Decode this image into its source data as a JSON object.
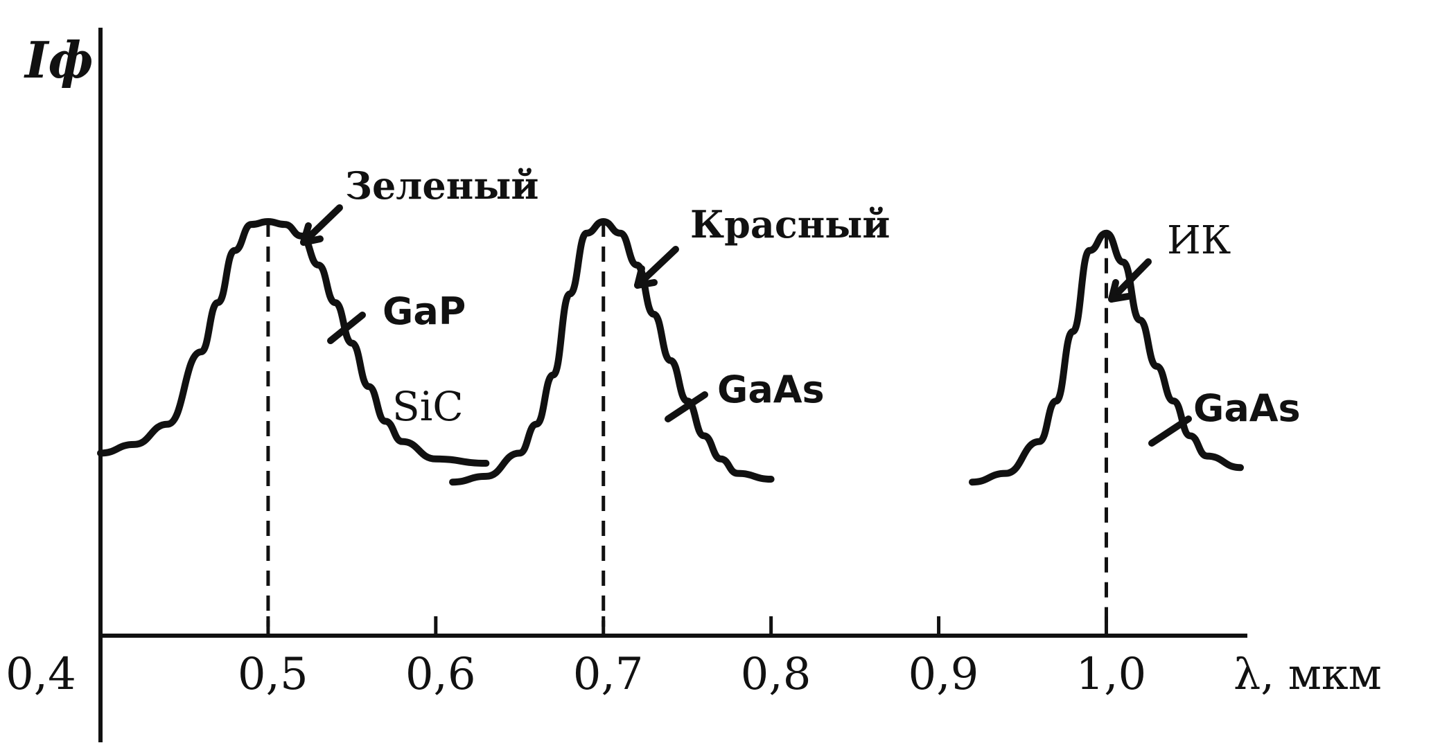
{
  "chart_data": {
    "type": "line",
    "title": "",
    "xlabel": "λ, мкм",
    "ylabel": "Iф",
    "xlim": [
      0.4,
      1.08
    ],
    "ylim": [
      0,
      1
    ],
    "grid": false,
    "x_tick_labels": [
      "0,4",
      "0,5",
      "0,6",
      "0,7",
      "0,8",
      "0,9",
      "1,0"
    ],
    "x_ticks": [
      0.4,
      0.5,
      0.6,
      0.7,
      0.8,
      0.9,
      1.0
    ],
    "series": [
      {
        "peak": 0.5,
        "color_name": "Зеленый",
        "materials": [
          "GaP",
          "SiC"
        ],
        "x": [
          0.4,
          0.42,
          0.44,
          0.46,
          0.47,
          0.48,
          0.49,
          0.5,
          0.51,
          0.52,
          0.53,
          0.54,
          0.55,
          0.56,
          0.57,
          0.58,
          0.6,
          0.63
        ],
        "y": [
          0.2,
          0.23,
          0.3,
          0.55,
          0.72,
          0.9,
          0.99,
          1.0,
          0.99,
          0.95,
          0.85,
          0.72,
          0.58,
          0.43,
          0.31,
          0.24,
          0.18,
          0.165
        ]
      },
      {
        "peak": 0.7,
        "color_name": "Красный",
        "materials": [
          "GaAs"
        ],
        "x": [
          0.61,
          0.63,
          0.65,
          0.66,
          0.67,
          0.68,
          0.69,
          0.7,
          0.71,
          0.72,
          0.73,
          0.74,
          0.75,
          0.76,
          0.77,
          0.78,
          0.8
        ],
        "y": [
          0.1,
          0.12,
          0.2,
          0.3,
          0.47,
          0.75,
          0.96,
          1.0,
          0.96,
          0.85,
          0.68,
          0.52,
          0.38,
          0.26,
          0.18,
          0.13,
          0.11
        ]
      },
      {
        "peak": 1.0,
        "color_name": "ИК",
        "materials": [
          "GaAs"
        ],
        "x": [
          0.92,
          0.94,
          0.96,
          0.97,
          0.98,
          0.99,
          1.0,
          1.01,
          1.02,
          1.03,
          1.04,
          1.05,
          1.06,
          1.08
        ],
        "y": [
          0.1,
          0.13,
          0.24,
          0.38,
          0.62,
          0.9,
          0.96,
          0.86,
          0.66,
          0.5,
          0.38,
          0.26,
          0.19,
          0.15
        ]
      }
    ],
    "annotations": {
      "green": "Зеленый",
      "red": "Красный",
      "ir": "ИК",
      "gap": "GaP",
      "sic": "SiC",
      "gaas_red": "GaAs",
      "gaas_ir": "GaAs"
    }
  }
}
